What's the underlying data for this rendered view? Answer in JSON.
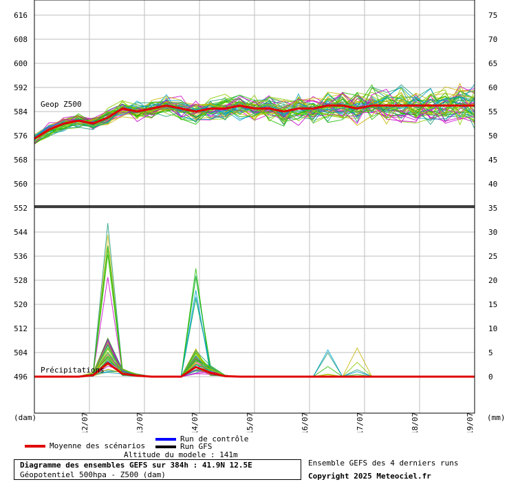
{
  "chart_data": {
    "type": "line",
    "title": "Diagramme des ensembles GEFS sur 384h : 41.9N 12.5E",
    "subtitle": "Géopotentiel 500hpa - Z500 (dam)",
    "y_left": {
      "label": "(dam)",
      "range": [
        490,
        620
      ],
      "ticks": [
        616,
        608,
        600,
        592,
        584,
        576,
        568,
        560,
        552,
        544,
        536,
        528,
        520,
        512,
        504,
        496
      ]
    },
    "y_right": {
      "label": "(mm)",
      "ticks_upper": [
        75,
        70,
        65,
        60,
        55,
        50,
        45,
        40,
        35
      ],
      "ticks_lower": [
        30,
        25,
        20,
        15,
        10,
        5,
        0
      ]
    },
    "x_ticks": [
      "12/07",
      "13/07",
      "14/07",
      "15/07",
      "16/07",
      "17/07",
      "18/07",
      "19/07"
    ],
    "panel_labels": {
      "upper": "Geop Z500",
      "lower": "Précipitations"
    },
    "series": [
      {
        "name": "Moyenne des scénarios",
        "color": "#e00000",
        "z500": [
          575,
          578,
          580,
          581,
          580,
          582,
          585,
          584,
          585,
          586,
          585,
          584,
          585,
          585,
          586,
          585,
          585,
          584,
          585,
          585,
          586,
          586,
          585,
          586,
          586,
          586,
          586,
          586,
          586,
          586,
          586
        ],
        "precip": [
          0,
          0,
          0,
          0,
          0.3,
          2.8,
          0.6,
          0.2,
          0,
          0,
          0,
          2.0,
          0.8,
          0.1,
          0,
          0,
          0,
          0,
          0,
          0,
          0,
          0,
          0,
          0,
          0,
          0,
          0,
          0,
          0,
          0,
          0
        ]
      },
      {
        "name": "Run de contrôle",
        "color": "#0000ff"
      },
      {
        "name": "Run GFS",
        "color": "#000000"
      }
    ],
    "ensemble_colors": [
      "#22bb00",
      "#cc00cc",
      "#c8b400",
      "#00a0c8",
      "#1b9e77",
      "#88cc00"
    ],
    "grid": true
  },
  "legend": {
    "mean": "Moyenne des scénarios",
    "control": "Run de contrôle",
    "gfs": "Run GFS"
  },
  "footer": {
    "altitude": "Altitude du modele : 141m",
    "info_title": "Diagramme des ensembles GEFS sur 384h : 41.9N 12.5E",
    "info_sub": "Géopotentiel 500hpa - Z500 (dam)",
    "runs_note": "Ensemble GEFS des 4 derniers runs",
    "copyright": "Copyright 2025 Meteociel.fr"
  }
}
